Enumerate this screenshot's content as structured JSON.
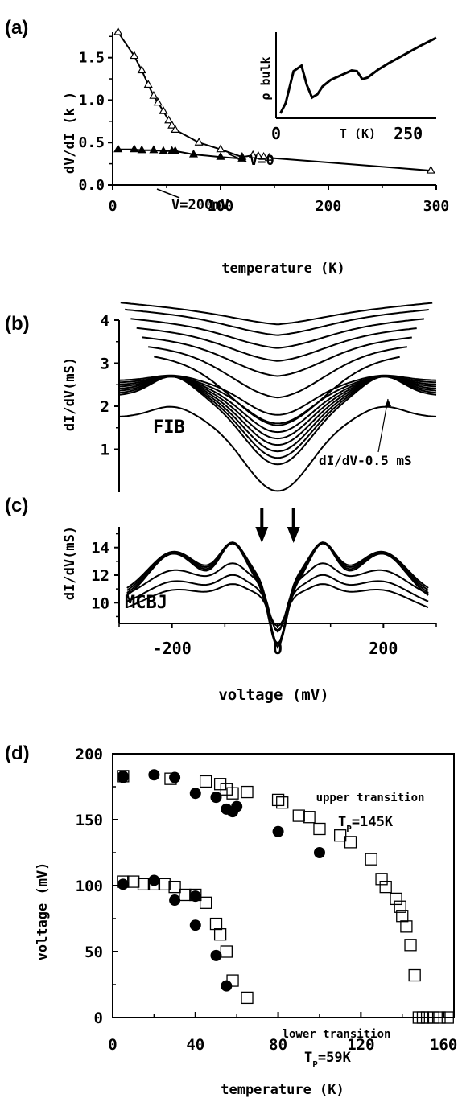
{
  "chart_data": [
    {
      "panel": "(a)",
      "type": "line",
      "xlabel": "temperature (K)",
      "ylabel": "dV/dI (k )",
      "xlim": [
        0,
        300
      ],
      "ylim": [
        0,
        1.8
      ],
      "xticks": [
        0,
        100,
        200,
        300
      ],
      "yticks": [
        0.0,
        0.5,
        1.0,
        1.5
      ],
      "ytick_labels": [
        "0.0",
        "0.5",
        "1.0",
        "1.5"
      ],
      "series": [
        {
          "name": "V=0",
          "marker": "open-triangle",
          "x": [
            5,
            20,
            27,
            33,
            38,
            42,
            47,
            52,
            55,
            58,
            80,
            100,
            120,
            130,
            135,
            140,
            145,
            295
          ],
          "y": [
            1.8,
            1.52,
            1.35,
            1.18,
            1.05,
            0.97,
            0.87,
            0.76,
            0.7,
            0.65,
            0.5,
            0.42,
            0.33,
            0.35,
            0.34,
            0.33,
            0.32,
            0.17
          ]
        },
        {
          "name": "V=200mV",
          "marker": "filled-triangle",
          "x": [
            5,
            20,
            27,
            38,
            47,
            55,
            58,
            75,
            100,
            120
          ],
          "y": [
            0.42,
            0.42,
            0.41,
            0.41,
            0.4,
            0.4,
            0.4,
            0.36,
            0.33,
            0.31
          ]
        }
      ],
      "annotations": [
        {
          "text": "V=0",
          "x": 92,
          "y": 0.55
        },
        {
          "text": "V=200mV",
          "x": 75,
          "y": 0.12
        }
      ],
      "inset": {
        "ylabel": "ρ bulk",
        "xlabel": "T (K)",
        "xlim": [
          0,
          300
        ],
        "xtick_labels": [
          "0",
          "250"
        ],
        "xtick_values": [
          0,
          250
        ],
        "curve": {
          "x": [
            5,
            15,
            30,
            45,
            55,
            65,
            75,
            85,
            100,
            120,
            140,
            150,
            160,
            170,
            180,
            190,
            210,
            240,
            270,
            300
          ],
          "y": [
            0.02,
            0.15,
            0.55,
            0.62,
            0.38,
            0.22,
            0.26,
            0.36,
            0.44,
            0.5,
            0.56,
            0.55,
            0.45,
            0.47,
            0.52,
            0.57,
            0.65,
            0.76,
            0.87,
            0.97
          ]
        }
      }
    },
    {
      "panel": "(b)",
      "type": "line",
      "ylabel": "dI/dV(mS)",
      "xlim": [
        -300,
        300
      ],
      "ylim": [
        0,
        4
      ],
      "yticks": [
        1,
        2,
        3,
        4
      ],
      "text_label": "FIB",
      "annotation": "dI/dV-0.5 mS",
      "note": "family of dI/dV spectra, approximate",
      "series": [
        {
          "kind": "cap",
          "base": 1.75,
          "peak": 0.25,
          "dip": 1.72
        },
        {
          "kind": "cap",
          "base": 2.25,
          "peak": 0.45,
          "dip": 1.6
        },
        {
          "kind": "cap",
          "base": 2.3,
          "peak": 0.4,
          "dip": 1.5
        },
        {
          "kind": "cap",
          "base": 2.35,
          "peak": 0.35,
          "dip": 1.4
        },
        {
          "kind": "cap",
          "base": 2.4,
          "peak": 0.3,
          "dip": 1.3
        },
        {
          "kind": "cap",
          "base": 2.45,
          "peak": 0.25,
          "dip": 1.2
        },
        {
          "kind": "cap",
          "base": 2.5,
          "peak": 0.2,
          "dip": 1.1
        },
        {
          "kind": "cap",
          "base": 2.55,
          "peak": 0.15,
          "dip": 0.95
        },
        {
          "kind": "cap",
          "base": 2.6,
          "peak": 0.12,
          "dip": 0.8
        },
        {
          "kind": "vee",
          "base": 2.9,
          "dip": 1.35
        },
        {
          "kind": "vee",
          "base": 3.1,
          "dip": 0.9
        },
        {
          "kind": "vee",
          "base": 3.3,
          "dip": 0.6
        },
        {
          "kind": "vee",
          "base": 3.5,
          "dip": 0.45
        },
        {
          "kind": "vee",
          "base": 3.7,
          "dip": 0.35
        },
        {
          "kind": "vee",
          "base": 3.9,
          "dip": 0.25
        },
        {
          "kind": "vee",
          "base": 4.05,
          "dip": 0.15
        }
      ]
    },
    {
      "panel": "(c)",
      "type": "line",
      "xlabel": "voltage (mV)",
      "ylabel": "dI/dV(mS)",
      "xlim": [
        -300,
        300
      ],
      "ylim": [
        8.5,
        15.5
      ],
      "yticks": [
        10,
        12,
        14
      ],
      "xticks": [
        -200,
        0,
        200
      ],
      "text_label": "MCBJ",
      "arrows_at_mV": [
        -30,
        30
      ],
      "note": "family of dI/dV spectra, approximate",
      "series": [
        {
          "base": 11.2,
          "peak": 3.6,
          "dip": 4.4
        },
        {
          "base": 11.4,
          "peak": 3.4,
          "dip": 4.4
        },
        {
          "base": 11.6,
          "peak": 3.2,
          "dip": 4.6
        },
        {
          "base": 11.8,
          "peak": 3.0,
          "dip": 4.8
        },
        {
          "base": 11.5,
          "peak": 1.6,
          "dip": 3.6
        },
        {
          "base": 11.0,
          "peak": 1.2,
          "dip": 3.0
        },
        {
          "base": 10.6,
          "peak": 0.9,
          "dip": 2.3
        }
      ]
    },
    {
      "panel": "(d)",
      "type": "scatter",
      "xlabel": "temperature (K)",
      "ylabel": "voltage (mV)",
      "xlim": [
        0,
        165
      ],
      "ylim": [
        0,
        200
      ],
      "xticks": [
        0,
        40,
        80,
        120,
        160
      ],
      "yticks": [
        0,
        50,
        100,
        150,
        200
      ],
      "series": [
        {
          "marker": "filled-circle",
          "points": [
            [
              5,
              183
            ],
            [
              5,
              182
            ],
            [
              20,
              184
            ],
            [
              30,
              182
            ],
            [
              40,
              170
            ],
            [
              50,
              167
            ],
            [
              55,
              158
            ],
            [
              58,
              156
            ],
            [
              60,
              160
            ],
            [
              80,
              141
            ],
            [
              100,
              125
            ],
            [
              5,
              101
            ],
            [
              20,
              104
            ],
            [
              30,
              89
            ],
            [
              40,
              70
            ],
            [
              40,
              92
            ],
            [
              50,
              47
            ],
            [
              55,
              24
            ]
          ]
        },
        {
          "marker": "open-square",
          "points": [
            [
              5,
              183
            ],
            [
              28,
              181
            ],
            [
              45,
              179
            ],
            [
              52,
              177
            ],
            [
              55,
              173
            ],
            [
              58,
              170
            ],
            [
              65,
              171
            ],
            [
              80,
              165
            ],
            [
              82,
              163
            ],
            [
              90,
              153
            ],
            [
              95,
              152
            ],
            [
              100,
              143
            ],
            [
              110,
              138
            ],
            [
              115,
              133
            ],
            [
              125,
              120
            ],
            [
              130,
              105
            ],
            [
              132,
              99
            ],
            [
              137,
              90
            ],
            [
              139,
              84
            ],
            [
              140,
              77
            ],
            [
              142,
              69
            ],
            [
              144,
              55
            ],
            [
              146,
              32
            ],
            [
              5,
              103
            ],
            [
              10,
              103
            ],
            [
              15,
              101
            ],
            [
              20,
              101
            ],
            [
              25,
              101
            ],
            [
              30,
              99
            ],
            [
              35,
              93
            ],
            [
              40,
              93
            ],
            [
              45,
              87
            ],
            [
              50,
              71
            ],
            [
              52,
              63
            ],
            [
              55,
              50
            ],
            [
              58,
              28
            ],
            [
              65,
              15
            ],
            [
              148,
              0
            ],
            [
              150,
              0
            ],
            [
              152,
              0
            ],
            [
              155,
              0
            ],
            [
              158,
              0
            ],
            [
              162,
              0
            ]
          ]
        }
      ],
      "annotations": [
        {
          "line1": "upper transition",
          "line2_main": "T",
          "line2_sub": "P",
          "line2_rest": "=145K"
        },
        {
          "line1": "lower transition",
          "line2_main": "T",
          "line2_sub": "P",
          "line2_rest": "=59K"
        }
      ]
    }
  ]
}
